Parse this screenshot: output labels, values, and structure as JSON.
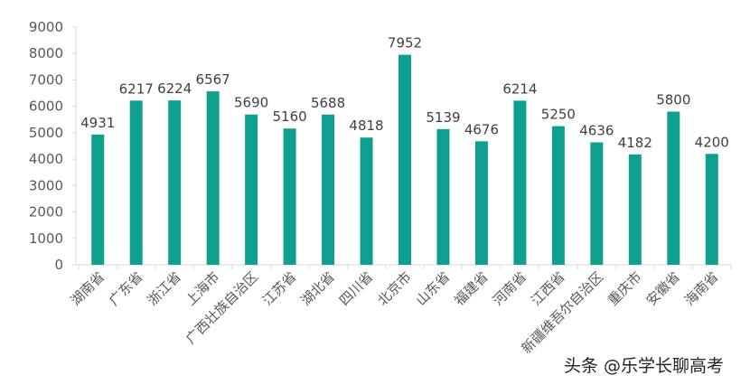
{
  "chart_data": {
    "type": "bar",
    "categories": [
      "湖南省",
      "广东省",
      "浙江省",
      "上海市",
      "广西壮族自治区",
      "江苏省",
      "湖北省",
      "四川省",
      "北京市",
      "山东省",
      "福建省",
      "河南省",
      "江西省",
      "新疆维吾尔自治区",
      "重庆市",
      "安徽省",
      "海南省"
    ],
    "values": [
      4931,
      6217,
      6224,
      6567,
      5690,
      5160,
      5688,
      4818,
      7952,
      5139,
      4676,
      6214,
      5250,
      4636,
      4182,
      5800,
      4200
    ],
    "title": "",
    "xlabel": "",
    "ylabel": "",
    "ylim": [
      0,
      9000
    ],
    "yticks": [
      0,
      1000,
      2000,
      3000,
      4000,
      5000,
      6000,
      7000,
      8000,
      9000
    ],
    "bar_color": "#0f9f8f",
    "grid": false,
    "data_labels": true
  },
  "watermark": "头条 @乐学长聊高考"
}
